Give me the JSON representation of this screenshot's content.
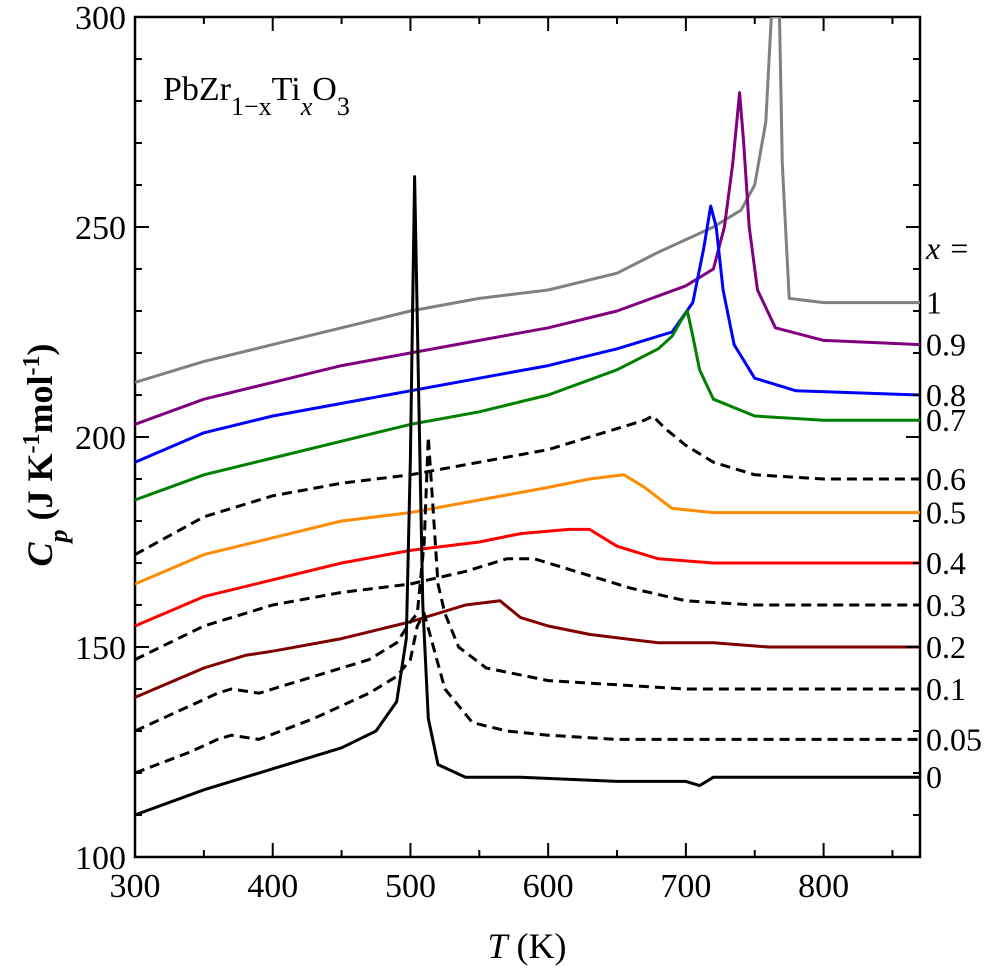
{
  "chart_data": {
    "type": "line",
    "title": "PbZr1-xTixO3",
    "title_parts": {
      "base": "PbZr",
      "sub1": "1−x",
      "mid": "Ti",
      "sub2": "x",
      "end": "O",
      "sub3": "3"
    },
    "xlabel": {
      "var": "T",
      "unit": " (K)"
    },
    "ylabel": {
      "var": "C",
      "sub": "p",
      "unit1": " (J K",
      "sup1": "-1",
      "unit2": "mol",
      "sup2": "-1",
      "unit3": ")"
    },
    "xlim": [
      300,
      870
    ],
    "ylim": [
      100,
      300
    ],
    "x_ticks": [
      300,
      400,
      500,
      600,
      700,
      800
    ],
    "y_ticks": [
      100,
      150,
      200,
      250,
      300
    ],
    "legend_header": "x =",
    "series": [
      {
        "name": "1",
        "color": "#808080",
        "dash": false,
        "points": [
          [
            300,
            213
          ],
          [
            350,
            218
          ],
          [
            400,
            222
          ],
          [
            450,
            226
          ],
          [
            500,
            230
          ],
          [
            550,
            233
          ],
          [
            600,
            235
          ],
          [
            650,
            239
          ],
          [
            680,
            244
          ],
          [
            700,
            247
          ],
          [
            720,
            250
          ],
          [
            740,
            254
          ],
          [
            750,
            260
          ],
          [
            758,
            275
          ],
          [
            762,
            300
          ],
          [
            768,
            300
          ],
          [
            770,
            265
          ],
          [
            775,
            233
          ],
          [
            800,
            232
          ],
          [
            870,
            232
          ]
        ]
      },
      {
        "name": "0.9",
        "color": "#800080",
        "dash": false,
        "points": [
          [
            300,
            203
          ],
          [
            350,
            209
          ],
          [
            400,
            213
          ],
          [
            450,
            217
          ],
          [
            500,
            220
          ],
          [
            550,
            223
          ],
          [
            600,
            226
          ],
          [
            650,
            230
          ],
          [
            700,
            236
          ],
          [
            720,
            240
          ],
          [
            728,
            250
          ],
          [
            734,
            265
          ],
          [
            739,
            282
          ],
          [
            742,
            270
          ],
          [
            746,
            250
          ],
          [
            752,
            235
          ],
          [
            765,
            226
          ],
          [
            800,
            223
          ],
          [
            870,
            222
          ]
        ]
      },
      {
        "name": "0.8",
        "color": "#0000ff",
        "dash": false,
        "points": [
          [
            300,
            194
          ],
          [
            350,
            201
          ],
          [
            400,
            205
          ],
          [
            450,
            208
          ],
          [
            500,
            211
          ],
          [
            550,
            214
          ],
          [
            600,
            217
          ],
          [
            650,
            221
          ],
          [
            690,
            225
          ],
          [
            705,
            232
          ],
          [
            713,
            245
          ],
          [
            718,
            255
          ],
          [
            722,
            250
          ],
          [
            727,
            235
          ],
          [
            735,
            222
          ],
          [
            750,
            214
          ],
          [
            780,
            211
          ],
          [
            870,
            210
          ]
        ]
      },
      {
        "name": "0.7",
        "color": "#008000",
        "dash": false,
        "points": [
          [
            300,
            185
          ],
          [
            350,
            191
          ],
          [
            400,
            195
          ],
          [
            450,
            199
          ],
          [
            500,
            203
          ],
          [
            550,
            206
          ],
          [
            600,
            210
          ],
          [
            650,
            216
          ],
          [
            680,
            221
          ],
          [
            690,
            224
          ],
          [
            697,
            228
          ],
          [
            701,
            230
          ],
          [
            705,
            224
          ],
          [
            710,
            216
          ],
          [
            720,
            209
          ],
          [
            750,
            205
          ],
          [
            800,
            204
          ],
          [
            870,
            204
          ]
        ]
      },
      {
        "name": "0.6",
        "color": "#000000",
        "dash": true,
        "points": [
          [
            300,
            172
          ],
          [
            350,
            181
          ],
          [
            400,
            186
          ],
          [
            450,
            189
          ],
          [
            500,
            191
          ],
          [
            550,
            194
          ],
          [
            600,
            197
          ],
          [
            640,
            201
          ],
          [
            670,
            204
          ],
          [
            676,
            205
          ],
          [
            685,
            202
          ],
          [
            700,
            198
          ],
          [
            720,
            194
          ],
          [
            750,
            191
          ],
          [
            800,
            190
          ],
          [
            870,
            190
          ]
        ]
      },
      {
        "name": "0.5",
        "color": "#ff8c00",
        "dash": false,
        "points": [
          [
            300,
            165
          ],
          [
            350,
            172
          ],
          [
            400,
            176
          ],
          [
            450,
            180
          ],
          [
            500,
            182
          ],
          [
            550,
            185
          ],
          [
            600,
            188
          ],
          [
            630,
            190
          ],
          [
            655,
            191
          ],
          [
            670,
            188
          ],
          [
            690,
            183
          ],
          [
            720,
            182
          ],
          [
            800,
            182
          ],
          [
            870,
            182
          ]
        ]
      },
      {
        "name": "0.4",
        "color": "#ff0000",
        "dash": false,
        "points": [
          [
            300,
            155
          ],
          [
            350,
            162
          ],
          [
            400,
            166
          ],
          [
            450,
            170
          ],
          [
            500,
            173
          ],
          [
            550,
            175
          ],
          [
            580,
            177
          ],
          [
            615,
            178
          ],
          [
            630,
            178
          ],
          [
            650,
            174
          ],
          [
            680,
            171
          ],
          [
            720,
            170
          ],
          [
            800,
            170
          ],
          [
            870,
            170
          ]
        ]
      },
      {
        "name": "0.3",
        "color": "#000000",
        "dash": true,
        "points": [
          [
            300,
            147
          ],
          [
            350,
            155
          ],
          [
            400,
            160
          ],
          [
            450,
            163
          ],
          [
            500,
            165
          ],
          [
            540,
            168
          ],
          [
            570,
            171
          ],
          [
            590,
            171
          ],
          [
            620,
            168
          ],
          [
            660,
            164
          ],
          [
            700,
            161
          ],
          [
            750,
            160
          ],
          [
            800,
            160
          ],
          [
            870,
            160
          ]
        ]
      },
      {
        "name": "0.2",
        "color": "#800000",
        "dash": false,
        "points": [
          [
            300,
            138
          ],
          [
            350,
            145
          ],
          [
            380,
            148
          ],
          [
            400,
            149
          ],
          [
            450,
            152
          ],
          [
            500,
            156
          ],
          [
            540,
            160
          ],
          [
            565,
            161
          ],
          [
            580,
            157
          ],
          [
            600,
            155
          ],
          [
            630,
            153
          ],
          [
            680,
            151
          ],
          [
            720,
            151
          ],
          [
            760,
            150
          ],
          [
            800,
            150
          ],
          [
            870,
            150
          ]
        ]
      },
      {
        "name": "0.1",
        "color": "#000000",
        "dash": true,
        "points": [
          [
            300,
            130
          ],
          [
            340,
            136
          ],
          [
            360,
            139
          ],
          [
            370,
            140
          ],
          [
            390,
            139
          ],
          [
            430,
            143
          ],
          [
            470,
            147
          ],
          [
            490,
            151
          ],
          [
            500,
            156
          ],
          [
            505,
            158
          ],
          [
            510,
            175
          ],
          [
            513,
            200
          ],
          [
            516,
            185
          ],
          [
            520,
            165
          ],
          [
            525,
            158
          ],
          [
            535,
            150
          ],
          [
            555,
            145
          ],
          [
            600,
            142
          ],
          [
            650,
            141
          ],
          [
            700,
            140
          ],
          [
            800,
            140
          ],
          [
            870,
            140
          ]
        ]
      },
      {
        "name": "0.05",
        "color": "#000000",
        "dash": true,
        "points": [
          [
            300,
            120
          ],
          [
            340,
            125
          ],
          [
            360,
            128
          ],
          [
            370,
            129
          ],
          [
            390,
            128
          ],
          [
            430,
            133
          ],
          [
            470,
            139
          ],
          [
            490,
            143
          ],
          [
            500,
            147
          ],
          [
            505,
            155
          ],
          [
            510,
            158
          ],
          [
            515,
            152
          ],
          [
            525,
            140
          ],
          [
            545,
            132
          ],
          [
            570,
            130
          ],
          [
            600,
            129
          ],
          [
            650,
            128
          ],
          [
            700,
            128
          ],
          [
            800,
            128
          ],
          [
            870,
            128
          ]
        ]
      },
      {
        "name": "0",
        "color": "#000000",
        "dash": false,
        "points": [
          [
            300,
            110
          ],
          [
            350,
            116
          ],
          [
            400,
            121
          ],
          [
            450,
            126
          ],
          [
            475,
            130
          ],
          [
            490,
            137
          ],
          [
            497,
            152
          ],
          [
            500,
            195
          ],
          [
            503,
            262
          ],
          [
            506,
            210
          ],
          [
            509,
            160
          ],
          [
            513,
            133
          ],
          [
            520,
            122
          ],
          [
            540,
            119
          ],
          [
            580,
            119
          ],
          [
            650,
            118
          ],
          [
            700,
            118
          ],
          [
            710,
            117
          ],
          [
            720,
            119
          ],
          [
            760,
            119
          ],
          [
            800,
            119
          ],
          [
            870,
            119
          ]
        ]
      }
    ]
  }
}
